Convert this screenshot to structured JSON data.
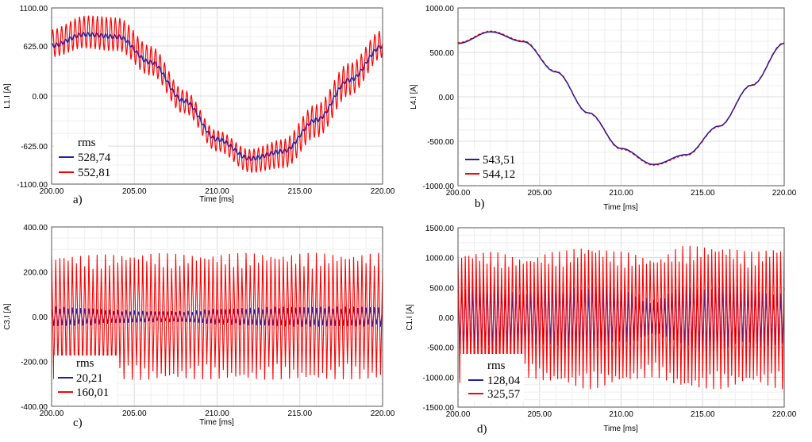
{
  "colors": {
    "series_a": "#2020a0",
    "series_b": "#ff0000"
  },
  "chart_data": [
    {
      "type": "line",
      "panel_label": "a)",
      "ylabel": "L1.I [A]",
      "xlabel": "Time [ms]",
      "xlim": [
        200,
        220
      ],
      "ylim": [
        -1100,
        1100
      ],
      "x_ticks": [
        "200.00",
        "205.00",
        "210.00",
        "215.00",
        "220.00"
      ],
      "y_ticks": [
        "1100.00",
        "625.00",
        "0.00",
        "-625.00",
        "-1100.00"
      ],
      "y_tick_values": [
        1100,
        625,
        0,
        -625,
        -1100
      ],
      "x": [
        200,
        202,
        204,
        206,
        208,
        210,
        212,
        214,
        216,
        218,
        220
      ],
      "legend": {
        "title": "rms",
        "placement": "bottom-left"
      },
      "series": [
        {
          "rms": "528,74",
          "values": [
            630,
            770,
            740,
            420,
            -60,
            -540,
            -780,
            -690,
            -300,
            200,
            620
          ]
        },
        {
          "rms": "552,81",
          "values": [
            660,
            800,
            770,
            440,
            -70,
            -560,
            -810,
            -720,
            -310,
            210,
            650
          ]
        }
      ]
    },
    {
      "type": "line",
      "panel_label": "b)",
      "ylabel": "L4.I [A]",
      "xlabel": "Time [ms]",
      "xlim": [
        200,
        220
      ],
      "ylim": [
        -1000,
        1000
      ],
      "x_ticks": [
        "200.00",
        "205.00",
        "210.00",
        "215.00",
        "220.00"
      ],
      "y_ticks": [
        "1000.00",
        "500.00",
        "0.00",
        "-500.00",
        "-1000.00"
      ],
      "y_tick_values": [
        1000,
        500,
        0,
        -500,
        -1000
      ],
      "x": [
        200,
        202,
        204,
        206,
        208,
        210,
        212,
        214,
        216,
        218,
        220
      ],
      "legend": {
        "title": "rms",
        "placement": "bottom-left"
      },
      "series": [
        {
          "rms": "543,51",
          "values": [
            600,
            730,
            620,
            280,
            -180,
            -580,
            -760,
            -650,
            -330,
            130,
            600
          ]
        },
        {
          "rms": "544,12",
          "values": [
            605,
            735,
            625,
            283,
            -182,
            -585,
            -765,
            -655,
            -332,
            131,
            605
          ]
        }
      ]
    },
    {
      "type": "line",
      "panel_label": "c)",
      "ylabel": "C3.I [A]",
      "xlabel": "Time [ms]",
      "xlim": [
        200,
        220
      ],
      "ylim": [
        -400,
        400
      ],
      "x_ticks": [
        "200.00",
        "205.00",
        "210.00",
        "215.00",
        "220.00"
      ],
      "y_ticks": [
        "400.00",
        "200.00",
        "0.00",
        "-200.00",
        "-400.00"
      ],
      "y_tick_values": [
        400,
        200,
        0,
        -200,
        -400
      ],
      "x": [
        200,
        202,
        204,
        206,
        208,
        210,
        212,
        214,
        216,
        218,
        220
      ],
      "legend": {
        "title": "rms",
        "placement": "bottom-left"
      },
      "series": [
        {
          "rms": "20,21",
          "envelope_max": [
            45,
            40,
            30,
            25,
            25,
            35,
            40,
            45,
            45,
            45,
            45
          ]
        },
        {
          "rms": "160,01",
          "envelope_max": [
            280,
            275,
            280,
            285,
            280,
            280,
            285,
            280,
            285,
            280,
            285
          ]
        }
      ]
    },
    {
      "type": "line",
      "panel_label": "d)",
      "ylabel": "C1.I [A]",
      "xlabel": "Time [ms]",
      "xlim": [
        200,
        220
      ],
      "ylim": [
        -1500,
        1500
      ],
      "x_ticks": [
        "200.00",
        "205.00",
        "210.00",
        "215.00",
        "220.00"
      ],
      "y_ticks": [
        "1500.00",
        "1000.00",
        "500.00",
        "0.00",
        "-500.00",
        "-1000.00",
        "-1500.00"
      ],
      "y_tick_values": [
        1500,
        1000,
        500,
        0,
        -500,
        -1000,
        -1500
      ],
      "x": [
        200,
        202,
        204,
        206,
        208,
        210,
        212,
        214,
        216,
        218,
        220
      ],
      "legend": {
        "title": "rms",
        "placement": "bottom-left"
      },
      "series": [
        {
          "rms": "128,04",
          "envelope_max": [
            600,
            620,
            500,
            600,
            620,
            520,
            300,
            580,
            620,
            520,
            500
          ]
        },
        {
          "rms": "325,57",
          "envelope_max": [
            1100,
            1100,
            1000,
            1100,
            1200,
            1100,
            1000,
            1200,
            1200,
            1100,
            1200
          ]
        }
      ]
    }
  ]
}
